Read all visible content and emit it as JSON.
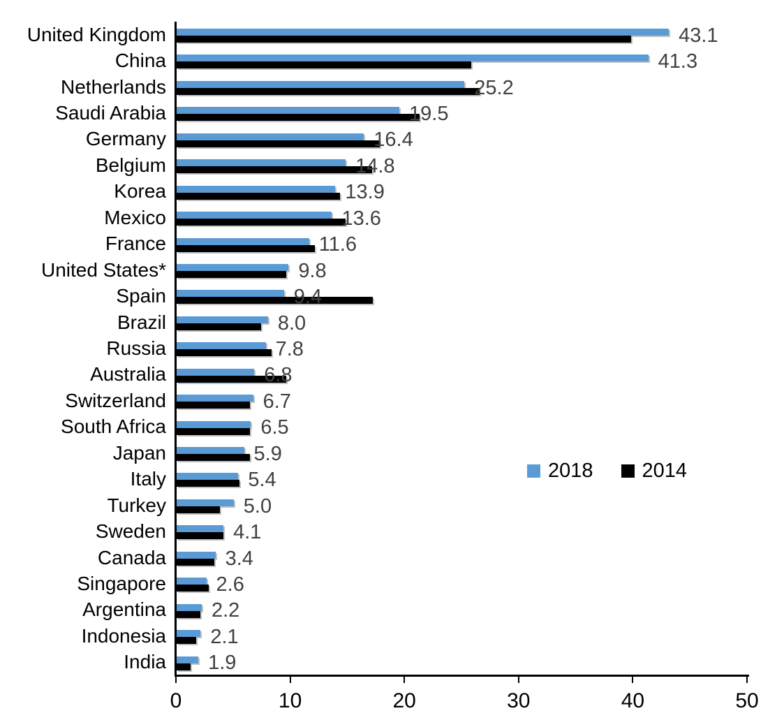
{
  "chart_data": {
    "type": "bar",
    "orientation": "horizontal",
    "title": "",
    "xlabel": "",
    "ylabel": "",
    "xlim": [
      0,
      50
    ],
    "xticks": [
      "0",
      "10",
      "20",
      "30",
      "40",
      "50"
    ],
    "grid": false,
    "legend_position": "middle-right",
    "categories": [
      "United Kingdom",
      "China",
      "Netherlands",
      "Saudi Arabia",
      "Germany",
      "Belgium",
      "Korea",
      "Mexico",
      "France",
      "United States*",
      "Spain",
      "Brazil",
      "Russia",
      "Australia",
      "Switzerland",
      "South Africa",
      "Japan",
      "Italy",
      "Turkey",
      "Sweden",
      "Canada",
      "Singapore",
      "Argentina",
      "Indonesia",
      "India"
    ],
    "series": [
      {
        "name": "2018",
        "color": "#5B9BD5",
        "values": [
          43.1,
          41.3,
          25.2,
          19.5,
          16.4,
          14.8,
          13.9,
          13.6,
          11.6,
          9.8,
          9.4,
          8.0,
          7.8,
          6.8,
          6.7,
          6.5,
          5.9,
          5.4,
          5.0,
          4.1,
          3.4,
          2.6,
          2.2,
          2.1,
          1.9
        ]
      },
      {
        "name": "2014",
        "color": "#000000",
        "values": [
          39.8,
          25.8,
          26.5,
          21.3,
          17.8,
          17.1,
          14.3,
          14.8,
          12.1,
          9.6,
          17.2,
          7.4,
          8.3,
          9.6,
          6.4,
          6.4,
          6.4,
          5.5,
          3.8,
          4.1,
          3.3,
          2.8,
          2.1,
          1.7,
          1.2
        ]
      }
    ],
    "value_labels": [
      "43.1",
      "41.3",
      "25.2",
      "19.5",
      "16.4",
      "14.8",
      "13.9",
      "13.6",
      "11.6",
      "9.8",
      "9.4",
      "8.0",
      "7.8",
      "6.8",
      "6.7",
      "6.5",
      "5.9",
      "5.4",
      "5.0",
      "4.1",
      "3.4",
      "2.6",
      "2.2",
      "2.1",
      "1.9"
    ]
  },
  "legend": {
    "items": [
      {
        "label": "2018",
        "color": "#5B9BD5"
      },
      {
        "label": "2014",
        "color": "#000000"
      }
    ]
  },
  "colors": {
    "bar_2018": "#5B9BD5",
    "bar_2014": "#000000",
    "value_label": "#404040",
    "axis": "#000000",
    "background": "#ffffff"
  }
}
